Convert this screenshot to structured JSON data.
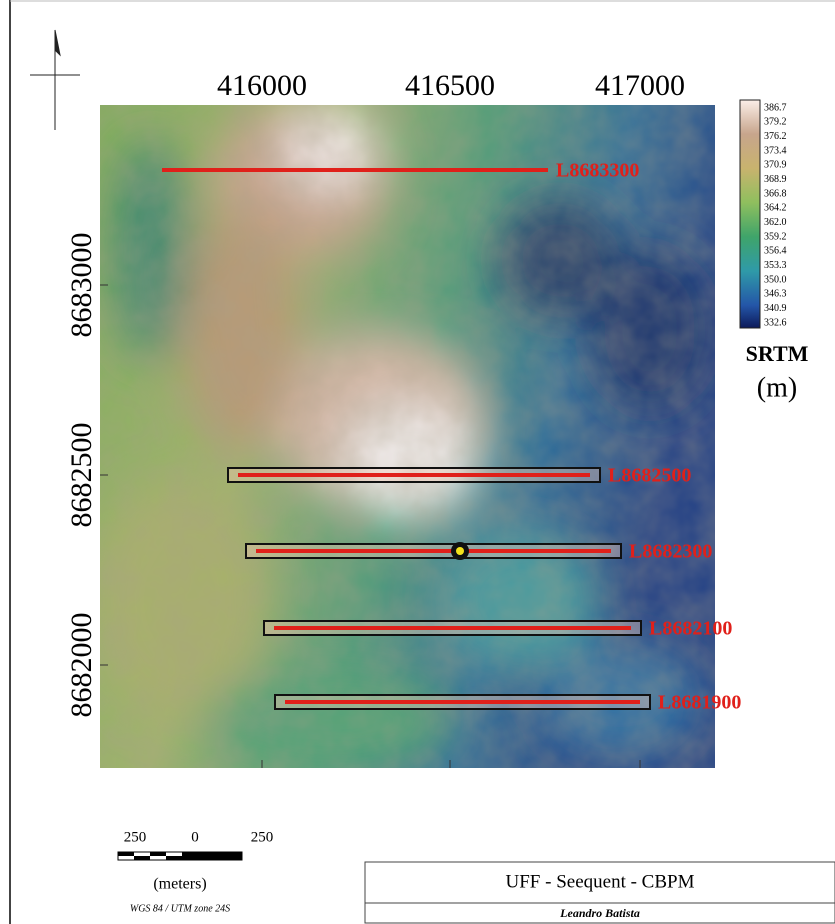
{
  "map": {
    "x_axis_labels": [
      "416000",
      "416500",
      "417000"
    ],
    "y_axis_labels": [
      "8683000",
      "8682500",
      "8682000"
    ],
    "colorbar": {
      "labels": [
        "386.7",
        "379.2",
        "376.2",
        "373.4",
        "370.9",
        "368.9",
        "366.8",
        "364.2",
        "362.0",
        "359.2",
        "356.4",
        "353.3",
        "350.0",
        "346.3",
        "340.9",
        "332.6"
      ],
      "title": "SRTM",
      "unit": "(m)"
    },
    "lines": [
      "L8683300",
      "L8682500",
      "L8682300",
      "L8682100",
      "L8681900"
    ]
  },
  "scale_bar": {
    "labels": [
      "250",
      "0",
      "250"
    ],
    "unit": "(meters)",
    "projection": "WGS 84 / UTM zone 24S"
  },
  "title_block": {
    "title": "UFF - Seequent - CBPM",
    "author": "Leandro Batista"
  }
}
